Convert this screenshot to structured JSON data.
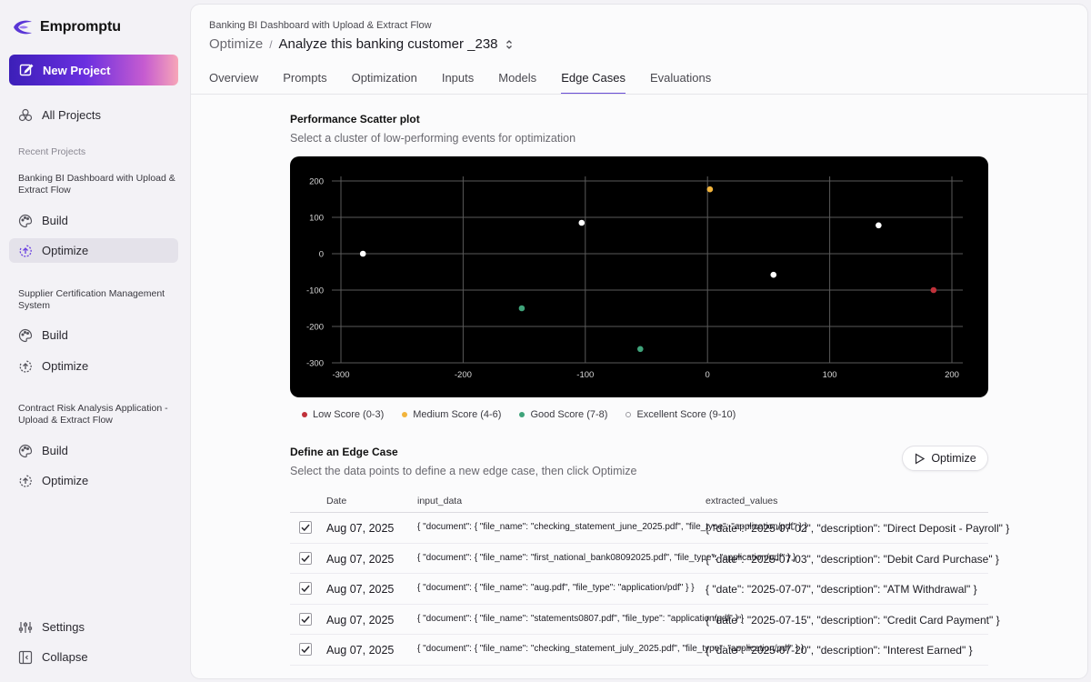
{
  "app": {
    "name": "Emprompt u"
  },
  "sidebar": {
    "new_project_label": "New Project",
    "all_projects_label": "All Projects",
    "recent_label": "Recent Projects",
    "projects": [
      {
        "title": "Banking BI Dashboard with Upload & Extract Flow",
        "build_label": "Build",
        "optimize_label": "Optimize"
      },
      {
        "title": "Supplier Certification Management System",
        "build_label": "Build",
        "optimize_label": "Optimize"
      },
      {
        "title": "Contract Risk Analysis Application - Upload & Extract Flow",
        "build_label": "Build",
        "optimize_label": "Optimize"
      }
    ],
    "settings_label": "Settings",
    "collapse_label": "Collapse"
  },
  "header": {
    "project_name": "Banking BI Dashboard with Upload & Extract Flow",
    "crumb_root": "Optimize",
    "crumb_sep": "/",
    "crumb_current": "Analyze this banking customer _238"
  },
  "tabs": [
    "Overview",
    "Prompts",
    "Optimization",
    "Inputs",
    "Models",
    "Edge Cases",
    "Evaluations"
  ],
  "scatter": {
    "title": "Performance Scatter plot",
    "subtitle": "Select a cluster of low-performing events for optimization"
  },
  "chart_data": {
    "type": "scatter",
    "title": "",
    "xlabel": "",
    "ylabel": "",
    "xlim": [
      -300,
      200
    ],
    "ylim": [
      -300,
      200
    ],
    "x_ticks": [
      -300,
      -200,
      -100,
      0,
      100,
      200
    ],
    "y_ticks": [
      200,
      100,
      0,
      -100,
      -200,
      -300
    ],
    "grid": true,
    "background": "#000000",
    "series": [
      {
        "name": "Low Score (0-3)",
        "color": "#c0313a",
        "points": [
          [
            185,
            -100
          ]
        ]
      },
      {
        "name": "Medium Score (4-6)",
        "color": "#f2b43c",
        "points": [
          [
            2,
            177
          ]
        ]
      },
      {
        "name": "Good Score (7-8)",
        "color": "#3fa37a",
        "points": [
          [
            -152,
            -150
          ],
          [
            -55,
            -262
          ]
        ]
      },
      {
        "name": "Excellent Score (9-10)",
        "color": "#ffffff",
        "points": [
          [
            -282,
            0
          ],
          [
            -103,
            85
          ],
          [
            54,
            -58
          ],
          [
            140,
            78
          ]
        ]
      }
    ]
  },
  "legend": [
    {
      "label": "Low Score (0-3)",
      "color": "#c0313a",
      "hollow": false
    },
    {
      "label": "Medium Score (4-6)",
      "color": "#f2b43c",
      "hollow": false
    },
    {
      "label": "Good Score (7-8)",
      "color": "#3fa37a",
      "hollow": false
    },
    {
      "label": "Excellent Score (9-10)",
      "color": "#ffffff",
      "hollow": true
    }
  ],
  "edge": {
    "title": "Define an Edge Case",
    "subtitle": "Select the data points to define a new edge case, then click Optimize",
    "optimize_label": "Optimize"
  },
  "table": {
    "columns": [
      "Date",
      "input_data",
      "extracted_values"
    ],
    "rows": [
      {
        "checked": true,
        "date": "Aug 07, 2025",
        "input": "{ \"document\": { \"file_name\": \"checking_statement_june_2025.pdf\", \"file_type\": \"application/pdf\" } }",
        "extracted": "{ \"date\": \"2025-07-02\", \"description\": \"Direct Deposit - Payroll\" }"
      },
      {
        "checked": true,
        "date": "Aug 07, 2025",
        "input": "{ \"document\": { \"file_name\": \"first_national_bank08092025.pdf\", \"file_type\": \"application/pdf\" } }",
        "extracted": "{ \"date\": \"2025-07-03\", \"description\": \"Debit Card Purchase\" }"
      },
      {
        "checked": true,
        "date": "Aug 07, 2025",
        "input": "{ \"document\": { \"file_name\": \"aug.pdf\", \"file_type\": \"application/pdf\" } }",
        "extracted": "{ \"date\": \"2025-07-07\", \"description\": \"ATM Withdrawal\" }"
      },
      {
        "checked": true,
        "date": "Aug 07, 2025",
        "input": "{ \"document\": { \"file_name\": \"statements0807.pdf\", \"file_type\": \"application/pdf\" } }",
        "extracted": "{ \"date\": \"2025-07-15\", \"description\": \"Credit Card Payment\" }"
      },
      {
        "checked": true,
        "date": "Aug 07, 2025",
        "input": "{ \"document\": { \"file_name\": \"checking_statement_july_2025.pdf\", \"file_type\": \"application/pdf\" } }",
        "extracted": "{ \"date\": \"2025-07-20\", \"description\": \"Interest Earned\" }"
      }
    ]
  }
}
